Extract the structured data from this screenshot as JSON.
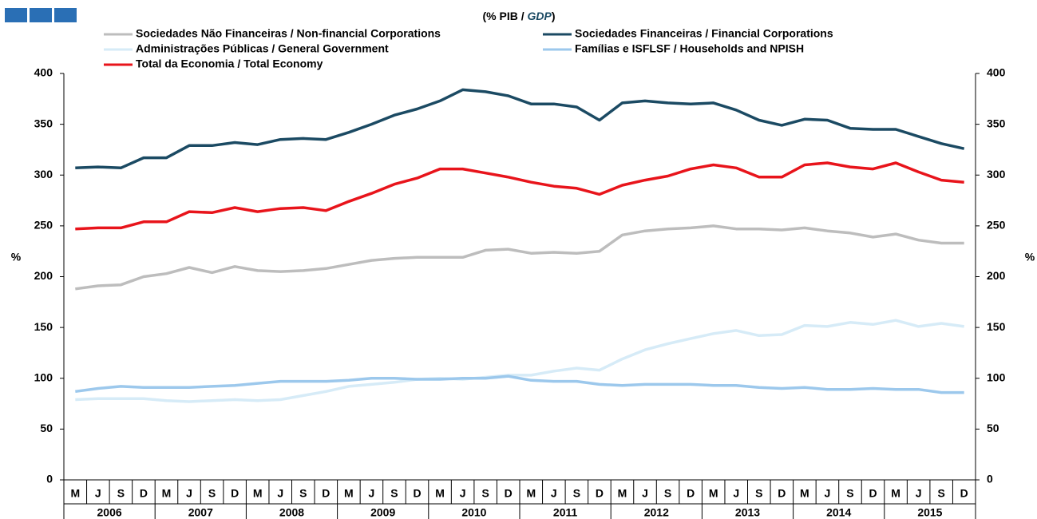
{
  "chart_data": {
    "type": "line",
    "title": [
      "(% PIB / ",
      "GDP",
      ")"
    ],
    "y_label": "%",
    "y2_label": "%",
    "categories": [
      "M",
      "J",
      "S",
      "D",
      "M",
      "J",
      "S",
      "D",
      "M",
      "J",
      "S",
      "D",
      "M",
      "J",
      "S",
      "D",
      "M",
      "J",
      "S",
      "D",
      "M",
      "J",
      "S",
      "D",
      "M",
      "J",
      "S",
      "D",
      "M",
      "J",
      "S",
      "D",
      "M",
      "J",
      "S",
      "D",
      "M",
      "J",
      "S",
      "D"
    ],
    "years": [
      "2006",
      "2007",
      "2008",
      "2009",
      "2010",
      "2011",
      "2012",
      "2013",
      "2014",
      "2015"
    ],
    "ylim": [
      0,
      400
    ],
    "yticks": [
      0,
      50,
      100,
      150,
      200,
      250,
      300,
      350,
      400
    ],
    "y2lim": [
      0,
      400
    ],
    "y2ticks": [
      0,
      50,
      100,
      150,
      200,
      250,
      300,
      350,
      400
    ],
    "series": [
      {
        "name": "Sociedades Não Financeiras / Non-financial Corporations",
        "color": "#bdbdbd",
        "values": [
          188,
          191,
          192,
          200,
          203,
          209,
          204,
          210,
          206,
          205,
          206,
          208,
          212,
          216,
          218,
          219,
          219,
          219,
          226,
          227,
          223,
          224,
          223,
          225,
          241,
          245,
          247,
          248,
          250,
          247,
          247,
          246,
          248,
          245,
          243,
          239,
          242,
          236,
          233,
          233
        ]
      },
      {
        "name": "Sociedades Financeiras / Financial Corporations",
        "color": "#1b4a63",
        "values": [
          307,
          308,
          307,
          317,
          317,
          329,
          329,
          332,
          330,
          335,
          336,
          335,
          342,
          350,
          359,
          365,
          373,
          384,
          382,
          378,
          370,
          370,
          367,
          354,
          371,
          373,
          371,
          370,
          371,
          364,
          354,
          349,
          355,
          354,
          346,
          345,
          345,
          338,
          331,
          326
        ]
      },
      {
        "name": "Administrações Públicas / General Government",
        "color": "#d6ebf7",
        "values": [
          79,
          80,
          80,
          80,
          78,
          77,
          78,
          79,
          78,
          79,
          83,
          87,
          92,
          94,
          96,
          99,
          100,
          99,
          101,
          103,
          103,
          107,
          110,
          108,
          119,
          128,
          134,
          139,
          144,
          147,
          142,
          143,
          152,
          151,
          155,
          153,
          157,
          151,
          154,
          151
        ]
      },
      {
        "name": "Famílias e ISFLSF / Households and NPISH",
        "color": "#9cc8ec",
        "values": [
          87,
          90,
          92,
          91,
          91,
          91,
          92,
          93,
          95,
          97,
          97,
          97,
          98,
          100,
          100,
          99,
          99,
          100,
          100,
          102,
          98,
          97,
          97,
          94,
          93,
          94,
          94,
          94,
          93,
          93,
          91,
          90,
          91,
          89,
          89,
          90,
          89,
          89,
          86,
          86
        ]
      },
      {
        "name": "Total da Economia / Total Economy",
        "color": "#e8141b",
        "values": [
          247,
          248,
          248,
          254,
          254,
          264,
          263,
          268,
          264,
          267,
          268,
          265,
          274,
          282,
          291,
          297,
          306,
          306,
          302,
          298,
          293,
          289,
          287,
          281,
          290,
          295,
          299,
          306,
          310,
          307,
          298,
          298,
          310,
          312,
          308,
          306,
          312,
          303,
          295,
          293
        ]
      }
    ]
  }
}
